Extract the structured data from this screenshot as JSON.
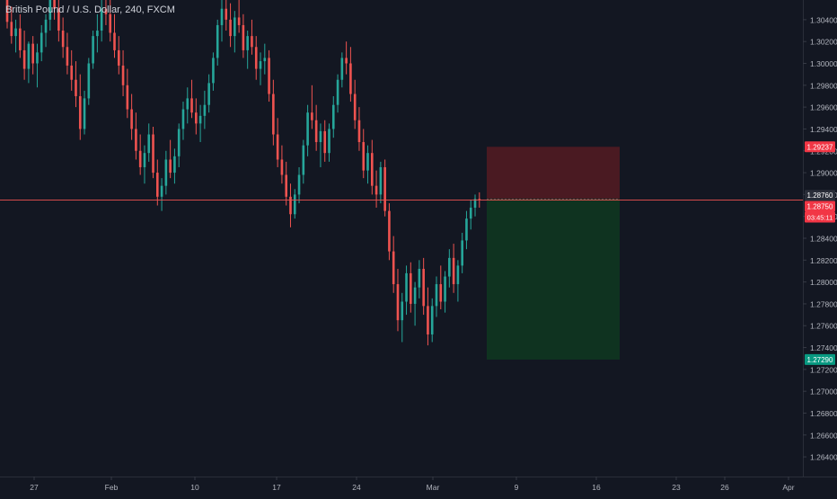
{
  "header": {
    "symbol_title": "British Pound / U.S. Dollar, 240, FXCM"
  },
  "colors": {
    "background": "#131722",
    "up": "#26a69a",
    "down": "#ef5350",
    "axis_text": "#b2b5be",
    "crosshair": "#ef5350",
    "stop_zone": "#4a1a22",
    "target_zone": "#0f3320"
  },
  "price_axis": {
    "tick_labels": [
      "1.30400",
      "1.30200",
      "1.30000",
      "1.29800",
      "1.29600",
      "1.29400",
      "1.29200",
      "1.29000",
      "1.28800",
      "1.28600",
      "1.28400",
      "1.28200",
      "1.28000",
      "1.27800",
      "1.27600",
      "1.27400",
      "1.27200",
      "1.27000",
      "1.26800",
      "1.26600",
      "1.26400"
    ],
    "badges": [
      {
        "name": "stop-loss-price-badge",
        "label": "1.29237",
        "value": 1.29237,
        "color": "#f23645"
      },
      {
        "name": "entry-price-badge",
        "label": "1.28760",
        "value": 1.2876,
        "color": "#2a2e39"
      },
      {
        "name": "current-price-badge",
        "label": "1.28750",
        "value": 1.2875,
        "color": "#f23645"
      },
      {
        "name": "take-profit-price-badge",
        "label": "1.27290",
        "value": 1.2729,
        "color": "#089981"
      }
    ],
    "countdown": "03:45:11"
  },
  "time_axis": {
    "labels": [
      "27",
      "Feb",
      "10",
      "17",
      "24",
      "Mar",
      "9",
      "16",
      "23",
      "26",
      "Apr"
    ]
  },
  "chart_data": {
    "type": "candlestick",
    "title": "British Pound / U.S. Dollar, 240, FXCM",
    "ylim": [
      1.2622,
      1.3058
    ],
    "last_price": 1.2875,
    "position": {
      "direction": "short",
      "entry": 1.2876,
      "stop_loss": 1.29237,
      "take_profit": 1.2729
    },
    "candles": [
      [
        1.3062,
        1.307,
        1.3032,
        1.3038
      ],
      [
        1.3038,
        1.3052,
        1.3018,
        1.3025
      ],
      [
        1.3025,
        1.304,
        1.301,
        1.3032
      ],
      [
        1.3032,
        1.3045,
        1.3005,
        1.3012
      ],
      [
        1.3012,
        1.303,
        1.2985,
        1.2995
      ],
      [
        1.2995,
        1.302,
        1.2982,
        1.3018
      ],
      [
        1.3018,
        1.3025,
        1.299,
        1.3
      ],
      [
        1.3,
        1.3018,
        1.2978,
        1.301
      ],
      [
        1.301,
        1.3035,
        1.3002,
        1.3028
      ],
      [
        1.3028,
        1.3045,
        1.3015,
        1.304
      ],
      [
        1.304,
        1.3072,
        1.303,
        1.3065
      ],
      [
        1.3065,
        1.308,
        1.304,
        1.305
      ],
      [
        1.305,
        1.3062,
        1.302,
        1.303
      ],
      [
        1.303,
        1.3042,
        1.3005,
        1.3015
      ],
      [
        1.3015,
        1.3028,
        1.299,
        1.2998
      ],
      [
        1.2998,
        1.3012,
        1.2975,
        1.2985
      ],
      [
        1.2985,
        1.3002,
        1.296,
        1.297
      ],
      [
        1.297,
        1.299,
        1.293,
        1.294
      ],
      [
        1.294,
        1.2975,
        1.2935,
        1.2968
      ],
      [
        1.2968,
        1.3005,
        1.2962,
        1.3
      ],
      [
        1.3,
        1.303,
        1.2995,
        1.3025
      ],
      [
        1.3025,
        1.3045,
        1.301,
        1.303
      ],
      [
        1.303,
        1.306,
        1.302,
        1.305
      ],
      [
        1.305,
        1.307,
        1.3035,
        1.3045
      ],
      [
        1.3045,
        1.3058,
        1.302,
        1.3028
      ],
      [
        1.3028,
        1.3045,
        1.3005,
        1.3012
      ],
      [
        1.3012,
        1.3025,
        1.299,
        1.2998
      ],
      [
        1.2998,
        1.3012,
        1.297,
        1.298
      ],
      [
        1.298,
        1.2995,
        1.295,
        1.2958
      ],
      [
        1.2958,
        1.2972,
        1.293,
        1.294
      ],
      [
        1.294,
        1.2955,
        1.2912,
        1.292
      ],
      [
        1.292,
        1.2935,
        1.2898,
        1.2905
      ],
      [
        1.2905,
        1.2925,
        1.289,
        1.2918
      ],
      [
        1.2918,
        1.2945,
        1.291,
        1.2935
      ],
      [
        1.2935,
        1.2942,
        1.2895,
        1.29
      ],
      [
        1.29,
        1.2912,
        1.287,
        1.2878
      ],
      [
        1.2878,
        1.2895,
        1.2865,
        1.2888
      ],
      [
        1.2888,
        1.292,
        1.288,
        1.2912
      ],
      [
        1.2912,
        1.293,
        1.2895,
        1.29
      ],
      [
        1.29,
        1.2922,
        1.289,
        1.2915
      ],
      [
        1.2915,
        1.2945,
        1.2905,
        1.294
      ],
      [
        1.294,
        1.2965,
        1.293,
        1.2958
      ],
      [
        1.2958,
        1.2978,
        1.2945,
        1.2968
      ],
      [
        1.2968,
        1.2985,
        1.295,
        1.2955
      ],
      [
        1.2955,
        1.2968,
        1.2935,
        1.2945
      ],
      [
        1.2945,
        1.2962,
        1.2928,
        1.2952
      ],
      [
        1.2952,
        1.2975,
        1.294,
        1.2962
      ],
      [
        1.2962,
        1.299,
        1.2955,
        1.2982
      ],
      [
        1.2982,
        1.301,
        1.2975,
        1.3005
      ],
      [
        1.3005,
        1.304,
        1.2998,
        1.3035
      ],
      [
        1.3035,
        1.306,
        1.302,
        1.305
      ],
      [
        1.305,
        1.3072,
        1.303,
        1.304
      ],
      [
        1.304,
        1.3055,
        1.3015,
        1.3025
      ],
      [
        1.3025,
        1.3048,
        1.301,
        1.3042
      ],
      [
        1.3042,
        1.3058,
        1.3028,
        1.3035
      ],
      [
        1.3035,
        1.3045,
        1.3005,
        1.3012
      ],
      [
        1.3012,
        1.303,
        1.2995,
        1.3025
      ],
      [
        1.3025,
        1.304,
        1.3008,
        1.3015
      ],
      [
        1.3015,
        1.3025,
        1.2985,
        1.2995
      ],
      [
        1.2995,
        1.301,
        1.298,
        1.3002
      ],
      [
        1.3002,
        1.3018,
        1.299,
        1.3005
      ],
      [
        1.3005,
        1.3012,
        1.2965,
        1.2972
      ],
      [
        1.2972,
        1.2985,
        1.2925,
        1.2935
      ],
      [
        1.2935,
        1.295,
        1.2905,
        1.2912
      ],
      [
        1.2912,
        1.2925,
        1.289,
        1.2898
      ],
      [
        1.2898,
        1.291,
        1.287,
        1.2878
      ],
      [
        1.2878,
        1.289,
        1.285,
        1.2862
      ],
      [
        1.2862,
        1.2885,
        1.2858,
        1.288
      ],
      [
        1.288,
        1.2905,
        1.2872,
        1.2898
      ],
      [
        1.2898,
        1.293,
        1.289,
        1.2925
      ],
      [
        1.2925,
        1.2962,
        1.2915,
        1.2955
      ],
      [
        1.2955,
        1.298,
        1.294,
        1.2948
      ],
      [
        1.2948,
        1.2962,
        1.292,
        1.2928
      ],
      [
        1.2928,
        1.2945,
        1.2905,
        1.2938
      ],
      [
        1.2938,
        1.2948,
        1.291,
        1.2918
      ],
      [
        1.2918,
        1.2945,
        1.291,
        1.294
      ],
      [
        1.294,
        1.297,
        1.2932,
        1.2962
      ],
      [
        1.2962,
        1.299,
        1.2955,
        1.2985
      ],
      [
        1.2985,
        1.301,
        1.2978,
        1.3005
      ],
      [
        1.3005,
        1.302,
        1.299,
        1.3
      ],
      [
        1.3,
        1.3015,
        1.2965,
        1.2972
      ],
      [
        1.2972,
        1.2985,
        1.294,
        1.2948
      ],
      [
        1.2948,
        1.296,
        1.292,
        1.2928
      ],
      [
        1.2928,
        1.294,
        1.2895,
        1.2902
      ],
      [
        1.2902,
        1.2925,
        1.289,
        1.2918
      ],
      [
        1.2918,
        1.293,
        1.288,
        1.2888
      ],
      [
        1.2888,
        1.2902,
        1.2868,
        1.288
      ],
      [
        1.288,
        1.291,
        1.2872,
        1.2905
      ],
      [
        1.2905,
        1.2912,
        1.286,
        1.2865
      ],
      [
        1.2865,
        1.2872,
        1.282,
        1.2828
      ],
      [
        1.2828,
        1.2842,
        1.279,
        1.2798
      ],
      [
        1.2798,
        1.2812,
        1.2755,
        1.2765
      ],
      [
        1.2765,
        1.279,
        1.2745,
        1.2782
      ],
      [
        1.2782,
        1.2815,
        1.277,
        1.2808
      ],
      [
        1.2808,
        1.2818,
        1.2772,
        1.278
      ],
      [
        1.278,
        1.28,
        1.276,
        1.2795
      ],
      [
        1.2795,
        1.282,
        1.2785,
        1.2812
      ],
      [
        1.2812,
        1.2822,
        1.277,
        1.2778
      ],
      [
        1.2778,
        1.2795,
        1.2742,
        1.2752
      ],
      [
        1.2752,
        1.2785,
        1.2745,
        1.2778
      ],
      [
        1.2778,
        1.2805,
        1.2768,
        1.2798
      ],
      [
        1.2798,
        1.2815,
        1.2775,
        1.2782
      ],
      [
        1.2782,
        1.281,
        1.2772,
        1.2805
      ],
      [
        1.2805,
        1.283,
        1.2795,
        1.2822
      ],
      [
        1.2822,
        1.2835,
        1.279,
        1.2798
      ],
      [
        1.2798,
        1.282,
        1.2782,
        1.2815
      ],
      [
        1.2815,
        1.2845,
        1.2808,
        1.2838
      ],
      [
        1.2838,
        1.2865,
        1.283,
        1.2858
      ],
      [
        1.2858,
        1.2875,
        1.2848,
        1.2868
      ],
      [
        1.2868,
        1.288,
        1.286,
        1.2876
      ],
      [
        1.2876,
        1.2882,
        1.2868,
        1.2875
      ]
    ]
  }
}
